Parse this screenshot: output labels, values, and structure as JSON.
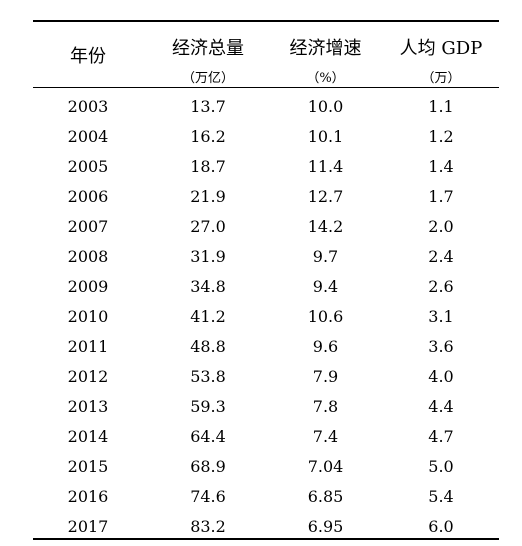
{
  "table": {
    "headers": {
      "year": "年份",
      "total": "经济总量",
      "total_unit": "（万亿）",
      "growth": "经济增速",
      "growth_unit": "（%）",
      "per_capita": "人均 GDP",
      "per_capita_unit": "（万）"
    },
    "rows": [
      {
        "year": "2003",
        "total": "13.7",
        "growth": "10.0",
        "per_capita": "1.1"
      },
      {
        "year": "2004",
        "total": "16.2",
        "growth": "10.1",
        "per_capita": "1.2"
      },
      {
        "year": "2005",
        "total": "18.7",
        "growth": "11.4",
        "per_capita": "1.4"
      },
      {
        "year": "2006",
        "total": "21.9",
        "growth": "12.7",
        "per_capita": "1.7"
      },
      {
        "year": "2007",
        "total": "27.0",
        "growth": "14.2",
        "per_capita": "2.0"
      },
      {
        "year": "2008",
        "total": "31.9",
        "growth": "9.7",
        "per_capita": "2.4"
      },
      {
        "year": "2009",
        "total": "34.8",
        "growth": "9.4",
        "per_capita": "2.6"
      },
      {
        "year": "2010",
        "total": "41.2",
        "growth": "10.6",
        "per_capita": "3.1"
      },
      {
        "year": "2011",
        "total": "48.8",
        "growth": "9.6",
        "per_capita": "3.6"
      },
      {
        "year": "2012",
        "total": "53.8",
        "growth": "7.9",
        "per_capita": "4.0"
      },
      {
        "year": "2013",
        "total": "59.3",
        "growth": "7.8",
        "per_capita": "4.4"
      },
      {
        "year": "2014",
        "total": "64.4",
        "growth": "7.4",
        "per_capita": "4.7"
      },
      {
        "year": "2015",
        "total": "68.9",
        "growth": "7.04",
        "per_capita": "5.0"
      },
      {
        "year": "2016",
        "total": "74.6",
        "growth": "6.85",
        "per_capita": "5.4"
      },
      {
        "year": "2017",
        "total": "83.2",
        "growth": "6.95",
        "per_capita": "6.0"
      }
    ]
  }
}
